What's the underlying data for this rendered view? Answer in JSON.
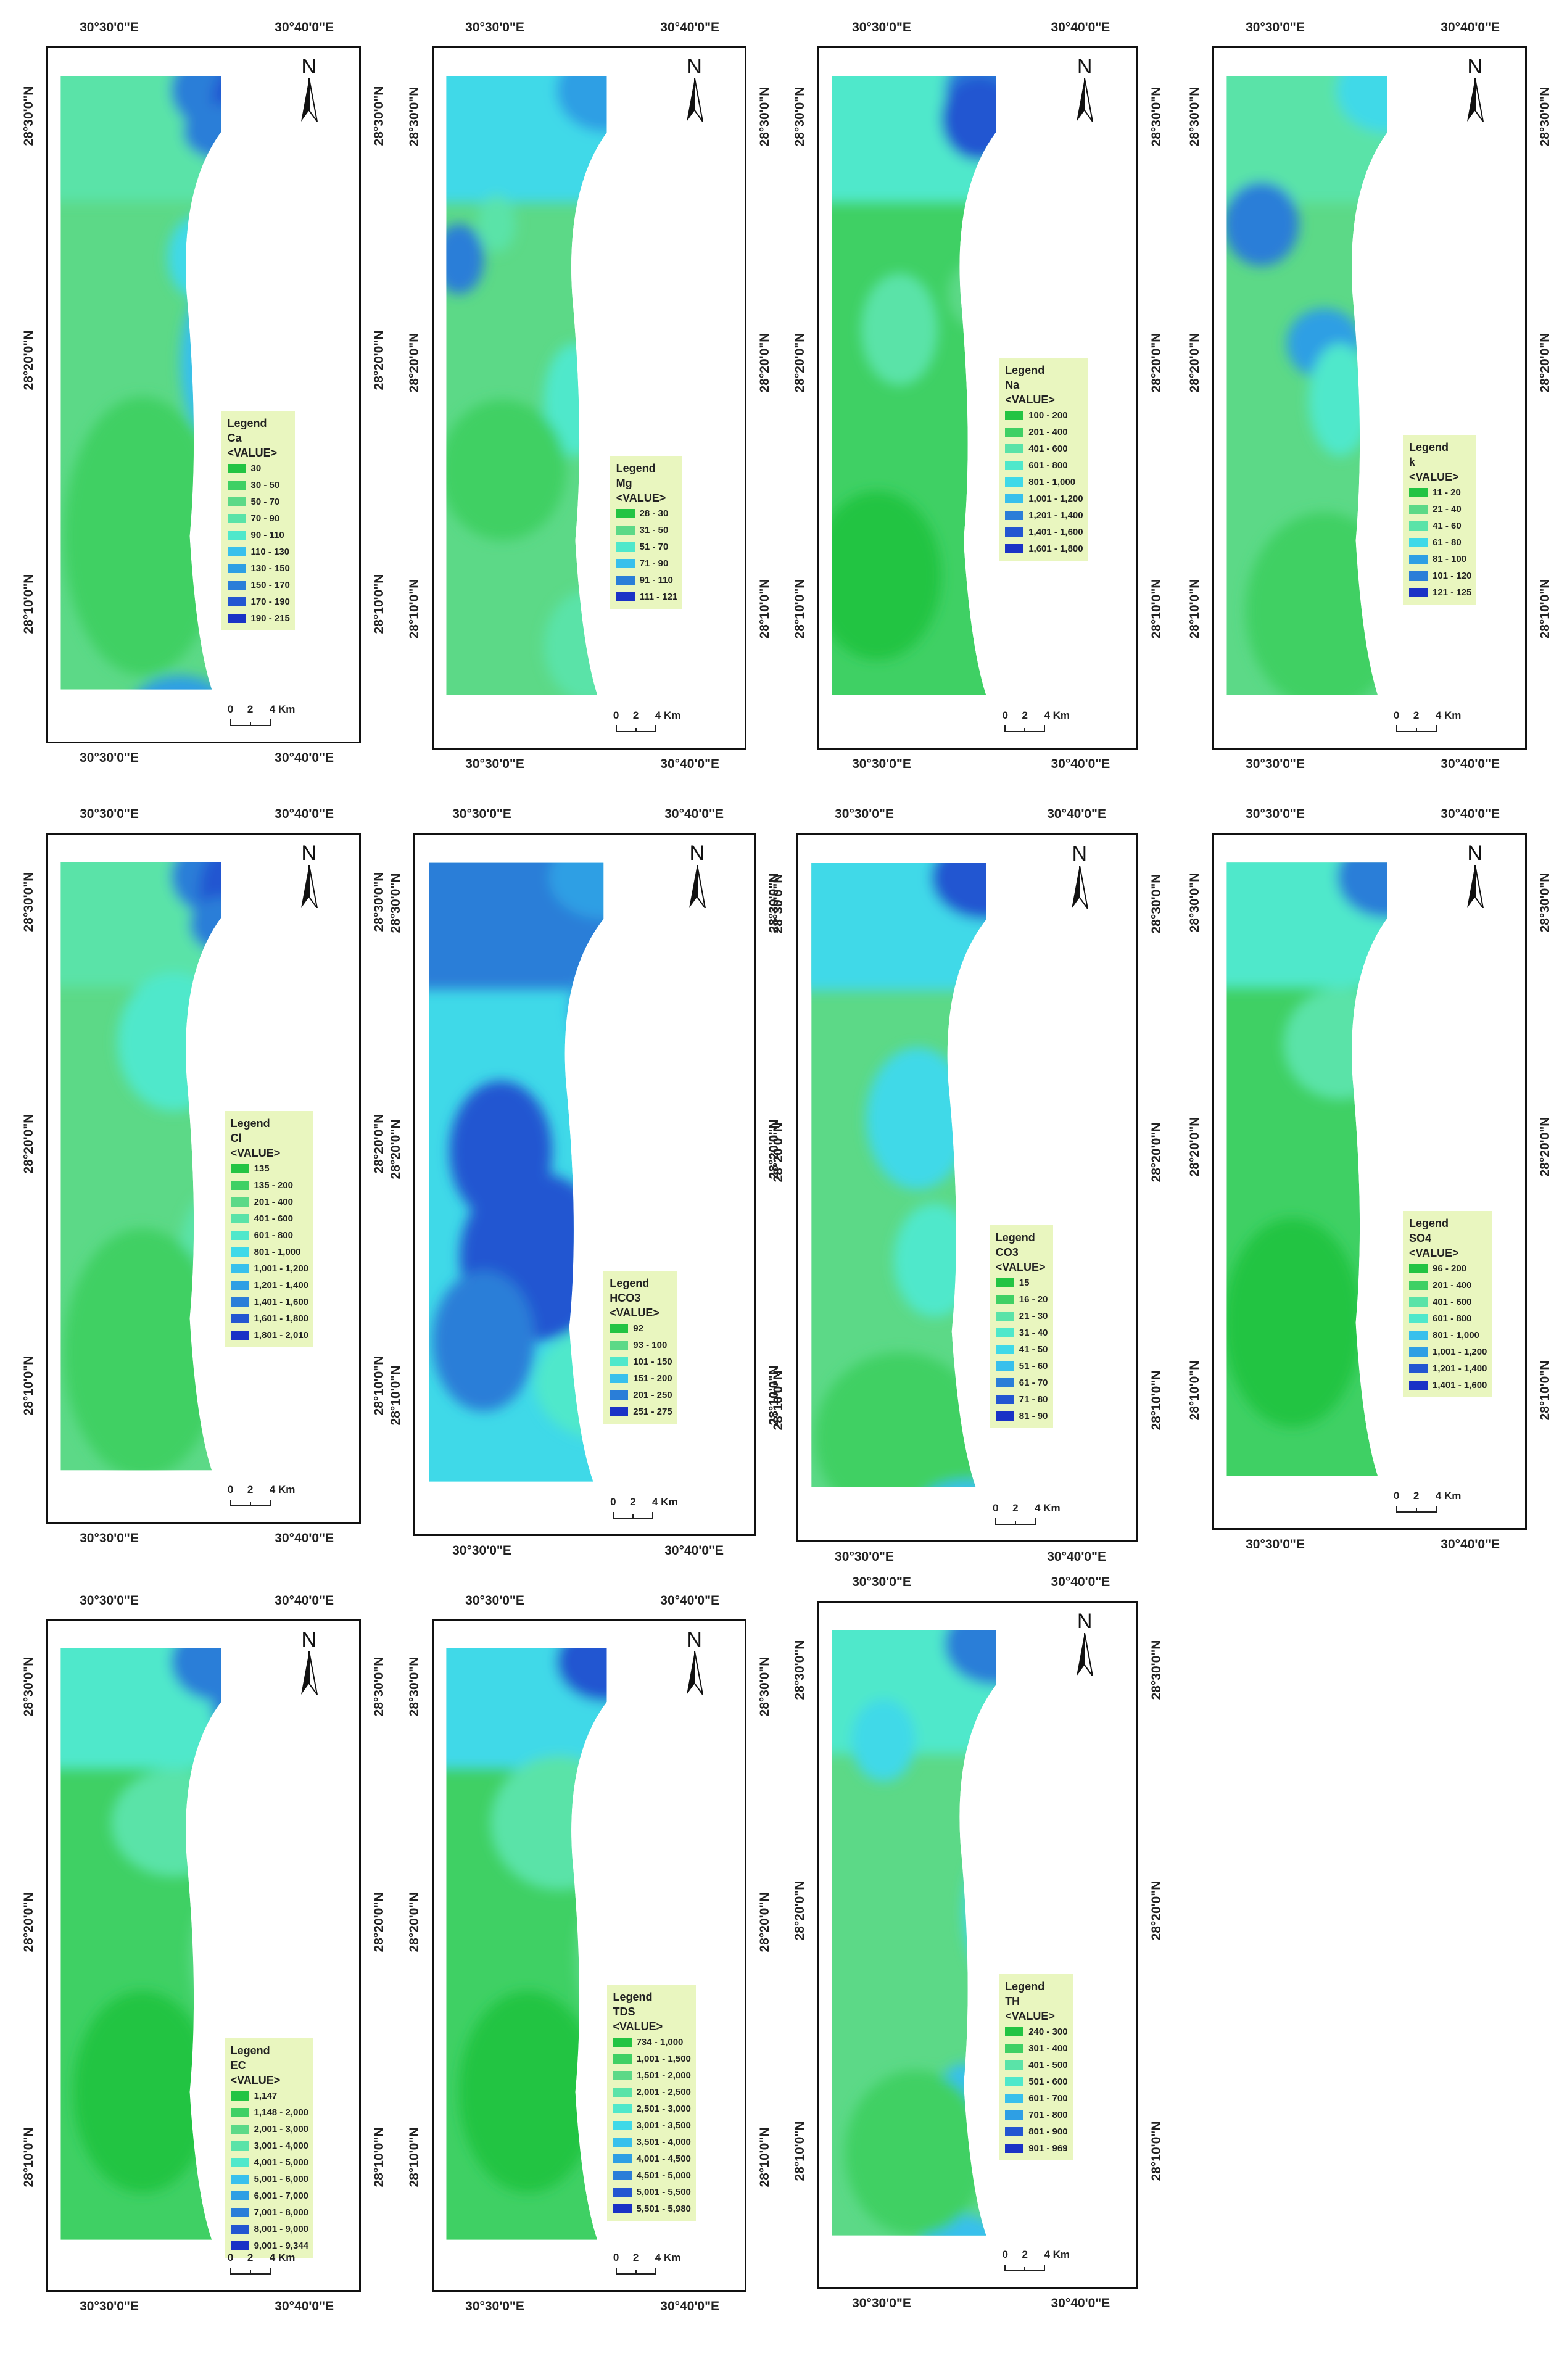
{
  "coordinate_labels": {
    "lon_west": "30°30'0\"E",
    "lon_east": "30°40'0\"E",
    "lat_30": "28°30'0\"N",
    "lat_20": "28°20'0\"N",
    "lat_10": "28°10'0\"N"
  },
  "north_letter": "N",
  "scale": {
    "zero": "0",
    "two": "2",
    "four": "4 Km"
  },
  "legend_heading": "Legend",
  "value_field": "<VALUE>",
  "class_colors": [
    "#23c443",
    "#3fd064",
    "#5cd987",
    "#5ae3a8",
    "#4fe8cb",
    "#3fd9e8",
    "#38c0ec",
    "#2e9fe4",
    "#2a7ed8",
    "#2356d1",
    "#1a32c6"
  ],
  "maps": [
    {
      "id": "ca",
      "name": "Ca",
      "classes": [
        "30",
        "30 - 50",
        "50 - 70",
        "70 - 90",
        "90 - 110",
        "110 - 130",
        "130 - 150",
        "150 - 170",
        "170 - 190",
        "190 - 215"
      ]
    },
    {
      "id": "mg",
      "name": "Mg",
      "classes": [
        "28 - 30",
        "31 - 50",
        "51 - 70",
        "71 - 90",
        "91 - 110",
        "111 - 121"
      ]
    },
    {
      "id": "na",
      "name": "Na",
      "classes": [
        "100 - 200",
        "201 - 400",
        "401 - 600",
        "601 - 800",
        "801 - 1,000",
        "1,001 - 1,200",
        "1,201 - 1,400",
        "1,401 - 1,600",
        "1,601 - 1,800"
      ]
    },
    {
      "id": "k",
      "name": "k",
      "classes": [
        "11 - 20",
        "21 - 40",
        "41 - 60",
        "61 - 80",
        "81 - 100",
        "101 - 120",
        "121 - 125"
      ]
    },
    {
      "id": "cl",
      "name": "Cl",
      "classes": [
        "135",
        "135 - 200",
        "201 - 400",
        "401 - 600",
        "601 - 800",
        "801 - 1,000",
        "1,001 - 1,200",
        "1,201 - 1,400",
        "1,401 - 1,600",
        "1,601 - 1,800",
        "1,801 - 2,010"
      ]
    },
    {
      "id": "hco3",
      "name": "HCO3",
      "classes": [
        "92",
        "93 - 100",
        "101 - 150",
        "151 - 200",
        "201 - 250",
        "251 - 275"
      ]
    },
    {
      "id": "co3",
      "name": "CO3",
      "classes": [
        "15",
        "16 - 20",
        "21 - 30",
        "31 - 40",
        "41 - 50",
        "51 - 60",
        "61 - 70",
        "71 - 80",
        "81 - 90"
      ]
    },
    {
      "id": "so4",
      "name": "SO4",
      "classes": [
        "96 - 200",
        "201 - 400",
        "401 - 600",
        "601 - 800",
        "801 - 1,000",
        "1,001 - 1,200",
        "1,201 - 1,400",
        "1,401 - 1,600"
      ]
    },
    {
      "id": "ec",
      "name": "EC",
      "classes": [
        "1,147",
        "1,148 - 2,000",
        "2,001 - 3,000",
        "3,001 - 4,000",
        "4,001 - 5,000",
        "5,001 - 6,000",
        "6,001 - 7,000",
        "7,001 - 8,000",
        "8,001 - 9,000",
        "9,001 - 9,344"
      ]
    },
    {
      "id": "tds",
      "name": "TDS",
      "classes": [
        "734 - 1,000",
        "1,001 - 1,500",
        "1,501 - 2,000",
        "2,001 - 2,500",
        "2,501 - 3,000",
        "3,001 - 3,500",
        "3,501 - 4,000",
        "4,001 - 4,500",
        "4,501 - 5,000",
        "5,001 - 5,500",
        "5,501 - 5,980"
      ]
    },
    {
      "id": "th",
      "name": "TH",
      "classes": [
        "240 - 300",
        "301 - 400",
        "401 - 500",
        "501 - 600",
        "601 - 700",
        "701 - 800",
        "801 - 900",
        "901 - 969"
      ]
    }
  ]
}
